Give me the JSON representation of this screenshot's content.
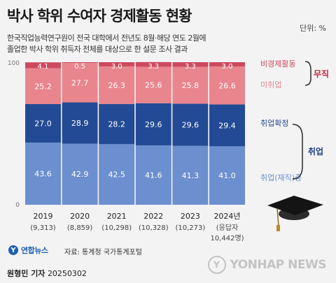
{
  "header": {
    "title": "박사 학위 수여자 경제활동 현황",
    "unit": "단위: %",
    "subtitle_lines": [
      "한국직업능력연구원이 전국 대학에서 전년도 8월·해당 연도 2월에",
      "졸업한 박사 학위 취득자 전체를 대상으로 한 설문 조사 결과"
    ]
  },
  "colors": {
    "inactive": "#cc4a5e",
    "unemployed": "#e8858d",
    "employed_confirmed": "#234a94",
    "employed_enrolled": "#6c8fcf",
    "muji_label": "#c02a43",
    "chwieop_label": "#1f3d8a",
    "bracket": "#2a2a2a"
  },
  "chart_data": {
    "type": "bar",
    "stacked": true,
    "ylim": [
      0,
      100
    ],
    "y_ticks": [
      "0",
      "100"
    ],
    "categories": [
      "2019",
      "2020",
      "2021",
      "2022",
      "2023",
      "2024년"
    ],
    "category_sub": [
      "(9,313)",
      "(8,859)",
      "(10,298)",
      "(10,328)",
      "(10,273)",
      "(응답자"
    ],
    "category_sub2": [
      "",
      "",
      "",
      "",
      "",
      "10,442명)"
    ],
    "series": [
      {
        "name": "취업(재직)중",
        "key": "employed_enrolled",
        "values": [
          43.6,
          42.9,
          42.5,
          41.6,
          41.3,
          41.0
        ]
      },
      {
        "name": "취업확정",
        "key": "employed_confirmed",
        "values": [
          27.0,
          28.9,
          28.2,
          29.6,
          29.6,
          29.4
        ]
      },
      {
        "name": "미취업",
        "key": "unemployed",
        "values": [
          25.2,
          27.7,
          26.3,
          25.6,
          25.8,
          26.6
        ]
      },
      {
        "name": "비경제활동",
        "key": "inactive",
        "values": [
          4.1,
          0.5,
          3.0,
          3.3,
          3.3,
          3.0
        ]
      }
    ],
    "data_labels": [
      [
        "43.6",
        "42.9",
        "42.5",
        "41.6",
        "41.3",
        "41.0"
      ],
      [
        "27.0",
        "28.9",
        "28.2",
        "29.6",
        "29.6",
        "29.4"
      ],
      [
        "25.2",
        "27.7",
        "26.3",
        "25.6",
        "25.8",
        "26.6"
      ],
      [
        "4.1",
        "0.5",
        "3.0",
        "3.3",
        "3.3",
        "3.0"
      ]
    ],
    "group_labels": {
      "muji": "무직",
      "chwieop": "취업"
    },
    "legend_placement": "right"
  },
  "footer": {
    "logo_mark": "Y",
    "logo_text": "연합뉴스",
    "source": "자료: 통계청 국가통계포털",
    "reporter_name": "원형민 기자",
    "date": "20250302",
    "watermark": "YONHAP NEWS",
    "watermark_mark": "Y"
  }
}
